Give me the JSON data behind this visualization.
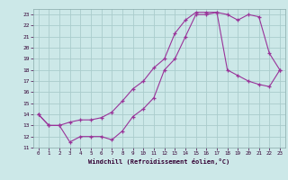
{
  "xlabel": "Windchill (Refroidissement éolien,°C)",
  "bg_color": "#cce8e8",
  "grid_color": "#aacccc",
  "line_color": "#993399",
  "xlim": [
    -0.5,
    23.5
  ],
  "ylim": [
    11,
    23.5
  ],
  "xticks": [
    0,
    1,
    2,
    3,
    4,
    5,
    6,
    7,
    8,
    9,
    10,
    11,
    12,
    13,
    14,
    15,
    16,
    17,
    18,
    19,
    20,
    21,
    22,
    23
  ],
  "yticks": [
    11,
    12,
    13,
    14,
    15,
    16,
    17,
    18,
    19,
    20,
    21,
    22,
    23
  ],
  "line1_x": [
    0,
    1,
    2,
    3,
    4,
    5,
    6,
    7,
    8,
    9,
    10,
    11,
    12,
    13,
    14,
    15,
    16,
    17,
    18,
    19,
    20,
    21,
    22,
    23
  ],
  "line1_y": [
    14,
    13,
    13,
    11.5,
    12,
    12,
    12,
    11.7,
    12.5,
    13.8,
    14.5,
    15.5,
    18,
    19,
    21,
    23,
    23,
    23.2,
    23,
    22.5,
    23,
    22.8,
    19.5,
    18
  ],
  "line2_x": [
    0,
    1,
    2,
    3,
    4,
    5,
    6,
    7,
    8,
    9,
    10,
    11,
    12,
    13,
    14,
    15,
    16,
    17,
    18,
    19,
    20,
    21,
    22,
    23
  ],
  "line2_y": [
    14,
    13,
    13,
    13.3,
    13.5,
    13.5,
    13.7,
    14.2,
    15.2,
    16.3,
    17.0,
    18.2,
    19.0,
    21.3,
    22.5,
    23.2,
    23.2,
    23.2,
    18.0,
    17.5,
    17.0,
    16.7,
    16.5,
    18.0
  ]
}
